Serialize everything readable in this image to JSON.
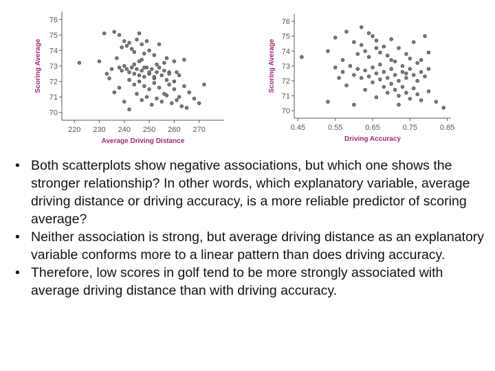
{
  "chart_data": [
    {
      "type": "scatter",
      "title": "",
      "xlabel": "Average Driving Distance",
      "ylabel": "Scoring Average",
      "xlim": [
        215,
        280
      ],
      "ylim": [
        69.5,
        76.5
      ],
      "xticks": [
        220,
        230,
        240,
        250,
        260,
        270
      ],
      "yticks": [
        70,
        71,
        72,
        73,
        74,
        75,
        76
      ],
      "grid": false,
      "points": [
        [
          222,
          73.2
        ],
        [
          230,
          73.3
        ],
        [
          232,
          75.1
        ],
        [
          236,
          75.2
        ],
        [
          238,
          75.0
        ],
        [
          240,
          74.6
        ],
        [
          241,
          74.3
        ],
        [
          242,
          74.5
        ],
        [
          243,
          74.1
        ],
        [
          244,
          73.9
        ],
        [
          245,
          74.7
        ],
        [
          246,
          75.1
        ],
        [
          247,
          74.4
        ],
        [
          248,
          73.8
        ],
        [
          249,
          74.6
        ],
        [
          250,
          74.0
        ],
        [
          252,
          73.7
        ],
        [
          254,
          74.4
        ],
        [
          256,
          73.2
        ],
        [
          258,
          72.6
        ],
        [
          260,
          73.3
        ],
        [
          262,
          72.4
        ],
        [
          264,
          73.4
        ],
        [
          238,
          72.9
        ],
        [
          239,
          72.7
        ],
        [
          240,
          73.0
        ],
        [
          241,
          72.8
        ],
        [
          242,
          72.6
        ],
        [
          243,
          72.9
        ],
        [
          244,
          72.5
        ],
        [
          245,
          72.8
        ],
        [
          246,
          72.4
        ],
        [
          247,
          72.7
        ],
        [
          248,
          72.3
        ],
        [
          249,
          72.9
        ],
        [
          250,
          72.5
        ],
        [
          251,
          72.8
        ],
        [
          252,
          72.2
        ],
        [
          253,
          72.6
        ],
        [
          254,
          72.9
        ],
        [
          255,
          72.4
        ],
        [
          256,
          72.7
        ],
        [
          257,
          72.1
        ],
        [
          258,
          72.5
        ],
        [
          244,
          73.1
        ],
        [
          246,
          73.3
        ],
        [
          248,
          72.9
        ],
        [
          250,
          72.6
        ],
        [
          242,
          72.1
        ],
        [
          244,
          71.8
        ],
        [
          246,
          72.0
        ],
        [
          248,
          71.7
        ],
        [
          250,
          71.5
        ],
        [
          252,
          71.9
        ],
        [
          254,
          71.6
        ],
        [
          256,
          71.2
        ],
        [
          258,
          71.8
        ],
        [
          260,
          71.5
        ],
        [
          262,
          71.0
        ],
        [
          264,
          71.7
        ],
        [
          266,
          71.3
        ],
        [
          268,
          70.9
        ],
        [
          270,
          70.6
        ],
        [
          272,
          71.8
        ],
        [
          247,
          70.8
        ],
        [
          249,
          71.0
        ],
        [
          251,
          70.5
        ],
        [
          253,
          70.9
        ],
        [
          255,
          70.7
        ],
        [
          257,
          71.1
        ],
        [
          259,
          70.6
        ],
        [
          261,
          70.8
        ],
        [
          263,
          70.4
        ],
        [
          265,
          70.3
        ],
        [
          240,
          70.7
        ],
        [
          242,
          70.2
        ],
        [
          236,
          71.3
        ],
        [
          238,
          71.6
        ],
        [
          234,
          72.2
        ],
        [
          233,
          72.5
        ],
        [
          245,
          71.2
        ],
        [
          252,
          72.3
        ],
        [
          260,
          72.0
        ],
        [
          235,
          72.8
        ],
        [
          237,
          73.5
        ],
        [
          239,
          74.2
        ],
        [
          247,
          73.4
        ],
        [
          253,
          73.1
        ],
        [
          257,
          73.5
        ],
        [
          261,
          72.6
        ]
      ]
    },
    {
      "type": "scatter",
      "title": "",
      "xlabel": "Driving Accuracy",
      "ylabel": "Scoring Average",
      "xlim": [
        0.44,
        0.86
      ],
      "ylim": [
        69.5,
        76.5
      ],
      "xticks": [
        "0.45",
        "0.55",
        "0.65",
        "0.75",
        "0.85"
      ],
      "yticks": [
        70,
        71,
        72,
        73,
        74,
        75,
        76
      ],
      "grid": false,
      "points": [
        [
          0.46,
          73.6
        ],
        [
          0.53,
          74.0
        ],
        [
          0.55,
          74.9
        ],
        [
          0.57,
          73.4
        ],
        [
          0.58,
          75.3
        ],
        [
          0.6,
          74.6
        ],
        [
          0.61,
          73.8
        ],
        [
          0.62,
          74.4
        ],
        [
          0.63,
          74.0
        ],
        [
          0.64,
          73.6
        ],
        [
          0.65,
          75.0
        ],
        [
          0.66,
          74.7
        ],
        [
          0.67,
          73.9
        ],
        [
          0.68,
          74.3
        ],
        [
          0.69,
          73.7
        ],
        [
          0.7,
          74.8
        ],
        [
          0.72,
          74.2
        ],
        [
          0.74,
          73.8
        ],
        [
          0.76,
          74.6
        ],
        [
          0.78,
          73.4
        ],
        [
          0.8,
          73.9
        ],
        [
          0.55,
          72.9
        ],
        [
          0.57,
          72.6
        ],
        [
          0.59,
          73.0
        ],
        [
          0.6,
          72.4
        ],
        [
          0.61,
          72.8
        ],
        [
          0.62,
          72.2
        ],
        [
          0.63,
          72.7
        ],
        [
          0.64,
          72.3
        ],
        [
          0.65,
          72.9
        ],
        [
          0.66,
          72.5
        ],
        [
          0.67,
          72.1
        ],
        [
          0.68,
          72.6
        ],
        [
          0.69,
          72.2
        ],
        [
          0.7,
          72.8
        ],
        [
          0.71,
          72.4
        ],
        [
          0.72,
          72.0
        ],
        [
          0.73,
          72.6
        ],
        [
          0.74,
          72.2
        ],
        [
          0.75,
          72.8
        ],
        [
          0.76,
          72.4
        ],
        [
          0.77,
          72.0
        ],
        [
          0.78,
          72.6
        ],
        [
          0.79,
          72.3
        ],
        [
          0.8,
          72.8
        ],
        [
          0.68,
          71.6
        ],
        [
          0.69,
          71.2
        ],
        [
          0.7,
          71.8
        ],
        [
          0.71,
          71.4
        ],
        [
          0.72,
          71.0
        ],
        [
          0.73,
          71.6
        ],
        [
          0.74,
          71.2
        ],
        [
          0.75,
          70.8
        ],
        [
          0.76,
          71.5
        ],
        [
          0.77,
          71.1
        ],
        [
          0.78,
          70.7
        ],
        [
          0.8,
          71.3
        ],
        [
          0.82,
          70.6
        ],
        [
          0.84,
          70.2
        ],
        [
          0.53,
          70.6
        ],
        [
          0.6,
          70.4
        ],
        [
          0.66,
          70.9
        ],
        [
          0.72,
          70.4
        ],
        [
          0.63,
          71.4
        ],
        [
          0.58,
          71.7
        ],
        [
          0.65,
          71.9
        ],
        [
          0.67,
          73.1
        ],
        [
          0.71,
          73.3
        ],
        [
          0.73,
          73.0
        ],
        [
          0.75,
          73.5
        ],
        [
          0.77,
          73.2
        ],
        [
          0.79,
          75.0
        ],
        [
          0.62,
          75.6
        ],
        [
          0.64,
          75.2
        ],
        [
          0.66,
          74.2
        ],
        [
          0.7,
          73.4
        ],
        [
          0.56,
          72.2
        ],
        [
          0.74,
          72.5
        ]
      ]
    }
  ],
  "bullets": [
    "Both scatterplots show negative associations, but which one shows the stronger relationship?  In other words, which explanatory variable, average driving distance or driving accuracy, is a more reliable predictor of scoring average?",
    "Neither association is strong, but average driving distance as an explanatory variable conforms more to a linear pattern than does driving accuracy.",
    "Therefore, low scores in golf tend to be more strongly associated with average driving distance than with driving accuracy."
  ],
  "colors": {
    "axis_title": "#a0287a",
    "point_fill": "#7a7a7a",
    "point_stroke": "#333333"
  }
}
